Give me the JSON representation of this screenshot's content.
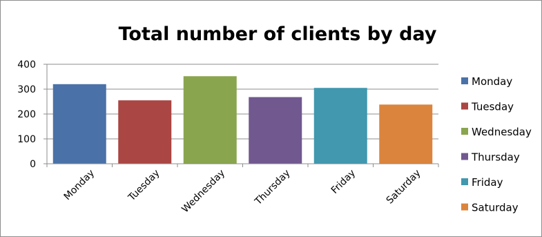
{
  "chart_data": {
    "type": "bar",
    "title": "Total number of clients by day",
    "xlabel": "",
    "ylabel": "",
    "categories": [
      "Monday",
      "Tuesday",
      "Wednesday",
      "Thursday",
      "Friday",
      "Saturday"
    ],
    "values": [
      320,
      255,
      352,
      268,
      305,
      238
    ],
    "ylim": [
      0,
      400
    ],
    "yticks": [
      0,
      100,
      200,
      300,
      400
    ],
    "colors": [
      "#4a72a8",
      "#aa4643",
      "#89a54e",
      "#71588f",
      "#4198af",
      "#db843d"
    ],
    "grid": true,
    "legend": {
      "placement": "right",
      "entries": [
        "Monday",
        "Tuesday",
        "Wednesday",
        "Thursday",
        "Friday",
        "Saturday"
      ]
    }
  }
}
